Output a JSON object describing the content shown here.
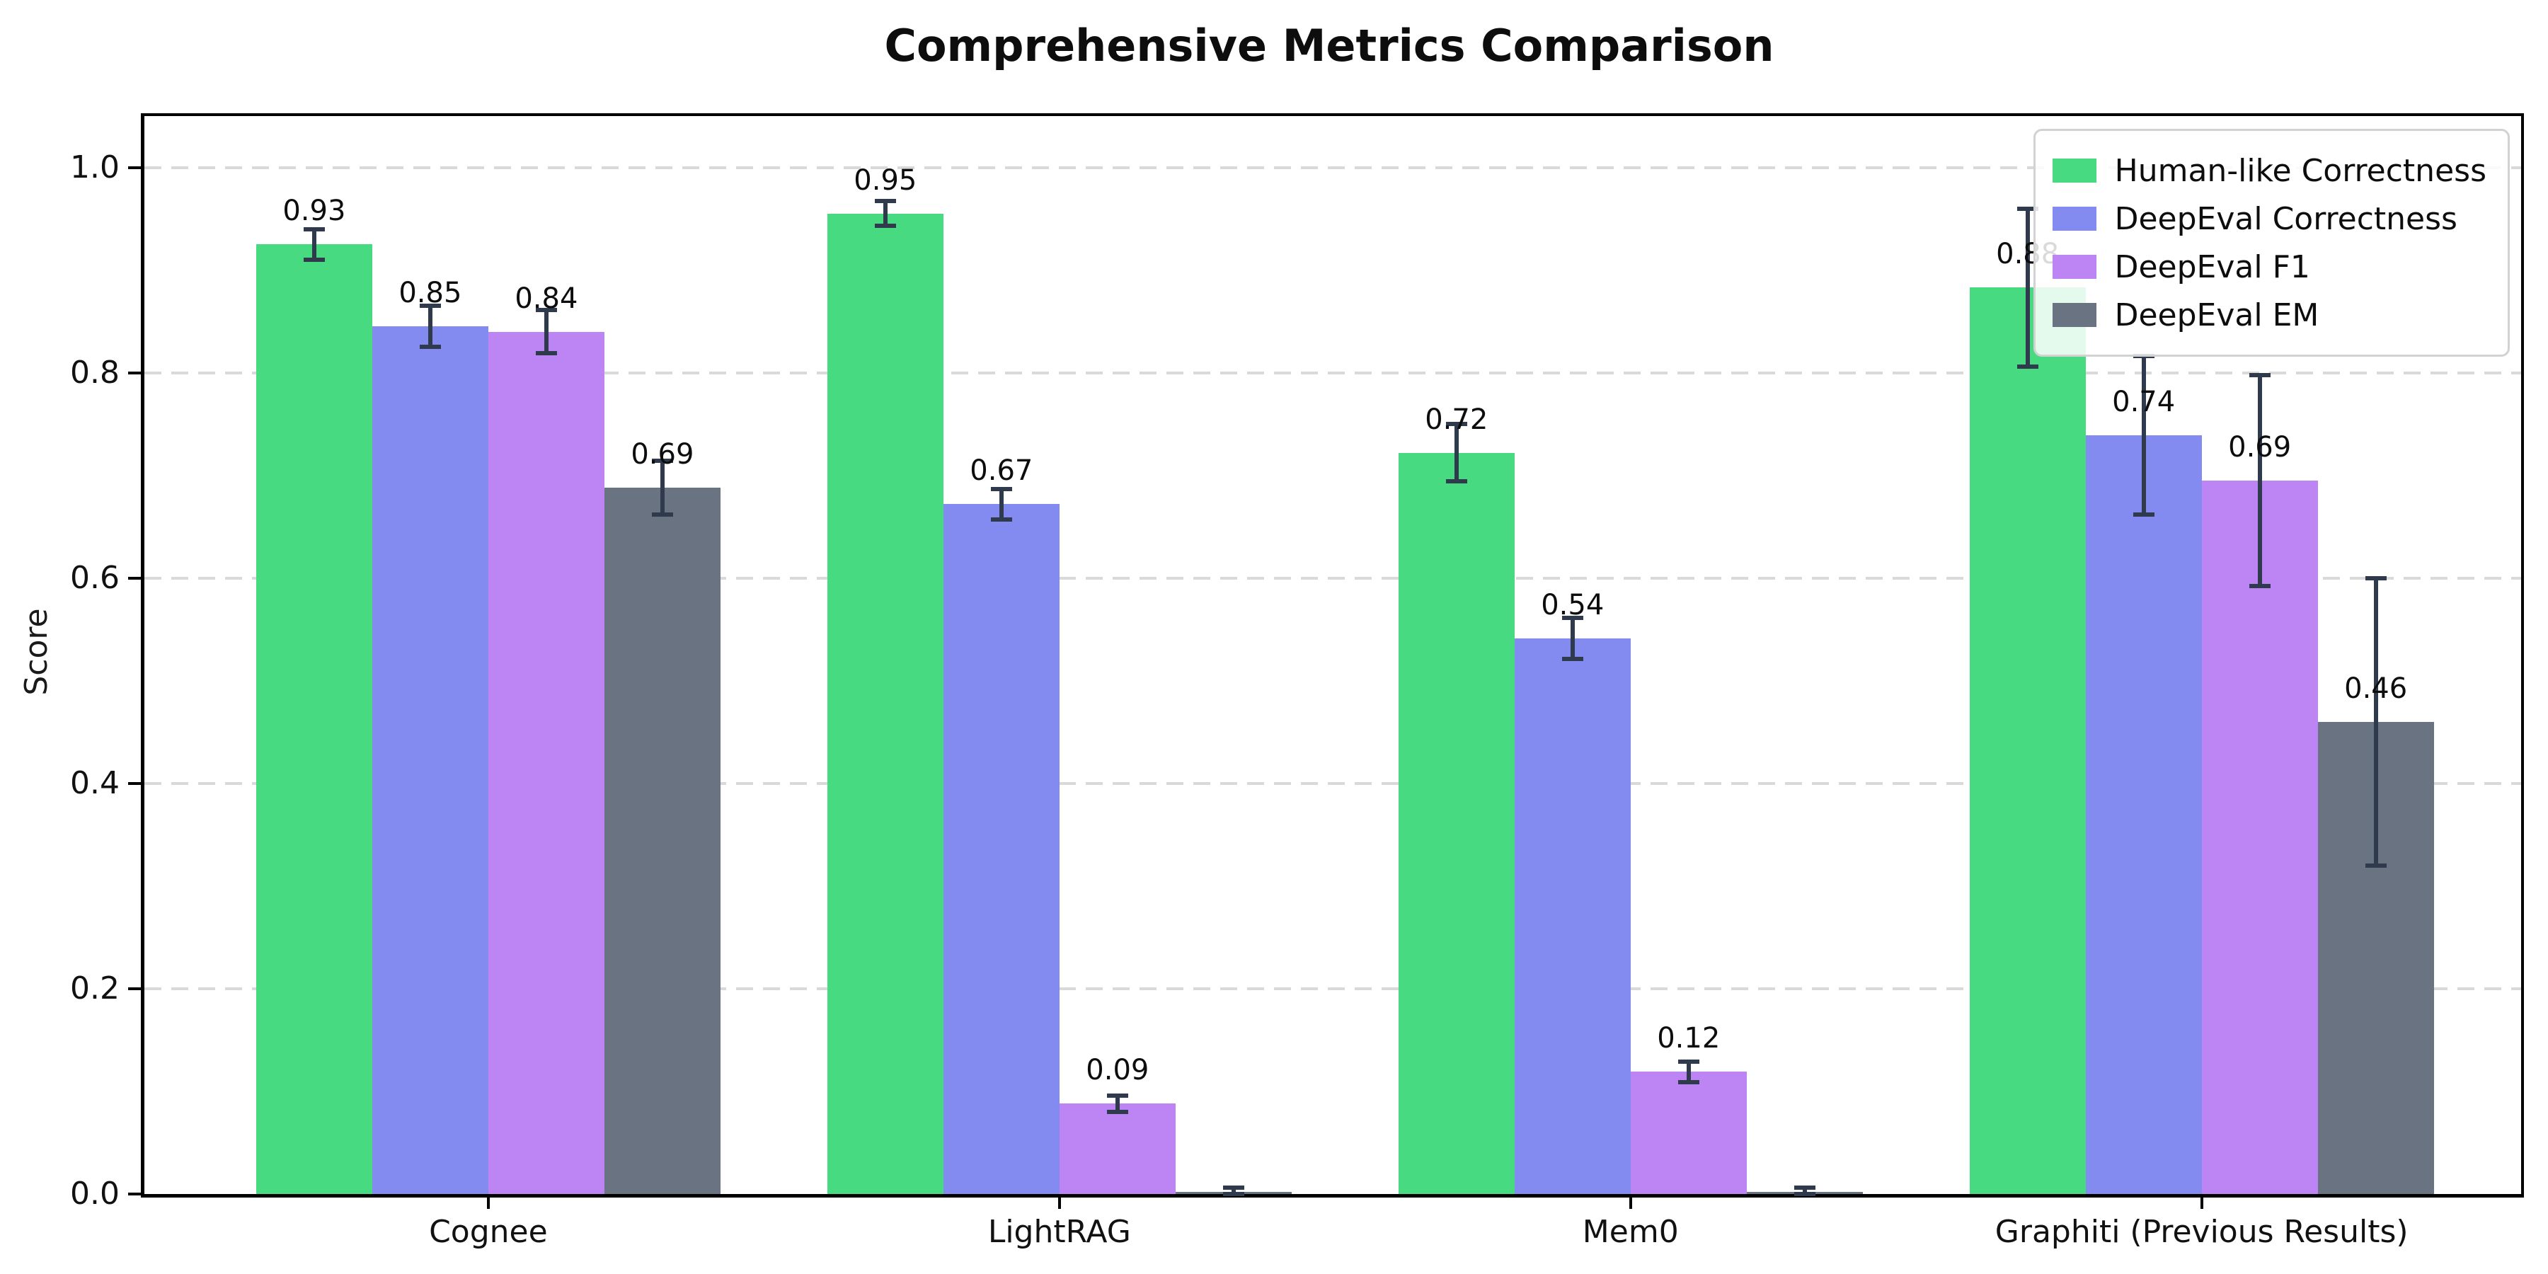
{
  "figure": {
    "title": "Comprehensive Metrics Comparison"
  },
  "chart_data": {
    "type": "bar",
    "title": "Comprehensive Metrics Comparison",
    "xlabel": "",
    "ylabel": "Score",
    "categories": [
      "Cognee",
      "LightRAG",
      "Mem0",
      "Graphiti (Previous Results)"
    ],
    "series": [
      {
        "name": "Human-like Correctness",
        "color": "#47da81",
        "values": [
          0.925,
          0.955,
          0.722,
          0.883
        ],
        "errors": [
          0.015,
          0.012,
          0.028,
          0.077
        ],
        "labels": [
          "0.93",
          "0.95",
          "0.72",
          "0.88"
        ]
      },
      {
        "name": "DeepEval Correctness",
        "color": "#838af0",
        "values": [
          0.845,
          0.672,
          0.541,
          0.739
        ],
        "errors": [
          0.02,
          0.015,
          0.02,
          0.077
        ],
        "labels": [
          "0.85",
          "0.67",
          "0.54",
          "0.74"
        ]
      },
      {
        "name": "DeepEval F1",
        "color": "#bd84f4",
        "values": [
          0.84,
          0.088,
          0.119,
          0.695
        ],
        "errors": [
          0.021,
          0.008,
          0.01,
          0.103
        ],
        "labels": [
          "0.84",
          "0.09",
          "0.12",
          "0.69"
        ]
      },
      {
        "name": "DeepEval EM",
        "color": "#6a7382",
        "values": [
          0.688,
          0.002,
          0.002,
          0.46
        ],
        "errors": [
          0.026,
          0.004,
          0.004,
          0.14
        ],
        "labels": [
          "0.69",
          "",
          "",
          "0.46"
        ]
      }
    ],
    "ylim": [
      0,
      1.05
    ],
    "yticks": [
      "0.0",
      "0.2",
      "0.4",
      "0.6",
      "0.8",
      "1.0"
    ],
    "ytick_values": [
      0.0,
      0.2,
      0.4,
      0.6,
      0.8,
      1.0
    ],
    "grid": {
      "axis": "y",
      "style": "dashed",
      "color": "#d9d9d9"
    },
    "error_bar_color": "#2f3b4d",
    "legend": {
      "position": "upper right",
      "entries": [
        "Human-like Correctness",
        "DeepEval Correctness",
        "DeepEval F1",
        "DeepEval EM"
      ]
    }
  }
}
